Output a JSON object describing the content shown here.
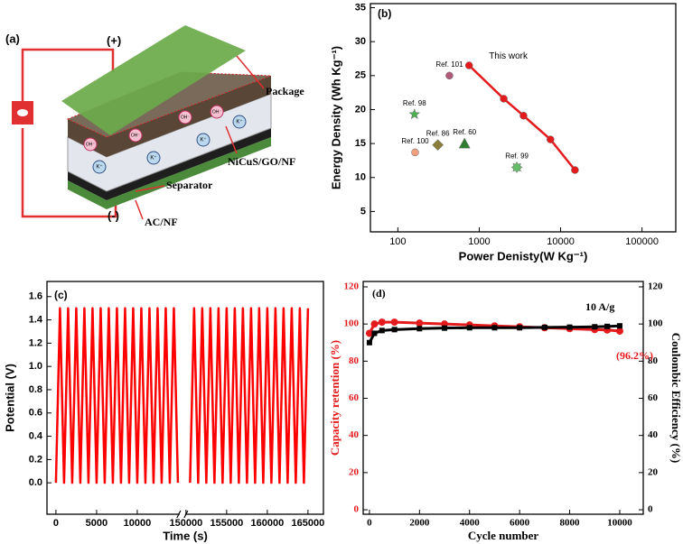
{
  "diagram": {
    "panel_label": "(a)",
    "terminals": [
      "(+)",
      "(-)"
    ],
    "labels": [
      "Package",
      "NiCuS/GO/NF",
      "Separator",
      "AC/NF"
    ],
    "ion_labels": [
      "OH⁻",
      "K⁺"
    ]
  },
  "chart_data": [
    {
      "type": "scatter",
      "panel_label": "(b)",
      "xlabel": "Power Denisty(W Kg⁻¹)",
      "ylabel": "Energy Density (Wh Kg⁻¹)",
      "xscale": "log",
      "xlim": [
        46,
        260000
      ],
      "xticks": [
        100,
        1000,
        10000,
        100000
      ],
      "ylim": [
        2,
        35.6
      ],
      "yticks": [
        5,
        10,
        15,
        20,
        25,
        30,
        35
      ],
      "series": [
        {
          "name": "This work",
          "color": "#e41a1c",
          "marker": "circle",
          "line": true,
          "x": [
            750,
            2000,
            3500,
            7500,
            15000
          ],
          "values": [
            26.5,
            21.6,
            19.1,
            15.6,
            11.1
          ]
        },
        {
          "name": "Ref. 101",
          "color": "#b05a7a",
          "marker": "circle",
          "x": [
            430
          ],
          "values": [
            25
          ]
        },
        {
          "name": "Ref. 98",
          "color": "#4caf50",
          "marker": "star",
          "x": [
            160
          ],
          "values": [
            19.3
          ]
        },
        {
          "name": "Ref. 86",
          "color": "#8b7d3a",
          "marker": "diamond",
          "x": [
            310
          ],
          "values": [
            14.8
          ]
        },
        {
          "name": "Ref. 60",
          "color": "#2e7d32",
          "marker": "triangle",
          "x": [
            660
          ],
          "values": [
            15
          ]
        },
        {
          "name": "Ref. 100",
          "color": "#f0a080",
          "marker": "circle",
          "x": [
            163
          ],
          "values": [
            13.7
          ]
        },
        {
          "name": "Ref. 99",
          "color": "#66bb6a",
          "marker": "burst",
          "x": [
            2900
          ],
          "values": [
            11.5
          ]
        }
      ]
    },
    {
      "type": "line",
      "panel_label": "(c)",
      "xlabel": "Time (s)",
      "ylabel": "Potential (V)",
      "xlim_segments": [
        [
          -1100,
          15100
        ],
        [
          150000,
          166900
        ]
      ],
      "xtick_segments": [
        [
          0,
          5000,
          10000
        ],
        [
          150000,
          155000,
          160000,
          165000
        ]
      ],
      "ylim": [
        -0.27,
        1.73
      ],
      "yticks": [
        {
          "value": 0,
          "label": "0.0"
        },
        0.2,
        0.4,
        0.6,
        0.8,
        {
          "value": 1,
          "label": "1.0"
        },
        1.2,
        1.4,
        1.6
      ],
      "series": [
        {
          "color": "#ff0000",
          "x": [
            0,
            500,
            1000,
            1500,
            2000,
            2500,
            3000,
            3500,
            4000,
            4500,
            5000,
            5500,
            6000,
            6500,
            7000,
            7500,
            8000,
            8500,
            9000,
            9500,
            10000,
            10500,
            11000,
            11500,
            12000,
            12500,
            13000,
            13500,
            14000,
            14500,
            15000,
            null,
            150500,
            151000,
            151500,
            152000,
            152500,
            153000,
            153500,
            154000,
            154500,
            155000,
            155500,
            156000,
            156500,
            157000,
            157500,
            158000,
            158500,
            159000,
            159500,
            160000,
            160500,
            161000,
            161500,
            162000,
            162500,
            163000,
            163500,
            164000,
            164500,
            165000
          ],
          "values": [
            0,
            1.5,
            0,
            1.5,
            0,
            1.5,
            0,
            1.5,
            0,
            1.5,
            0,
            1.5,
            0,
            1.5,
            0,
            1.5,
            0,
            1.5,
            0,
            1.5,
            0,
            1.5,
            0,
            1.5,
            0,
            1.5,
            0,
            1.5,
            0,
            1.5,
            0,
            null,
            0,
            1.5,
            0,
            1.5,
            0,
            1.5,
            0,
            1.5,
            0,
            1.5,
            0,
            1.5,
            0,
            1.5,
            0,
            1.5,
            0,
            1.5,
            0,
            1.5,
            0,
            1.5,
            0,
            1.5,
            0,
            1.5,
            0,
            1.5,
            0,
            1.5
          ]
        }
      ]
    },
    {
      "type": "line",
      "panel_label": "(d)",
      "xlabel": "Cycle number",
      "ylabel": "Capacity retention (%)",
      "ylabel_color": "#e41a1c",
      "y2label": "Coulombic Efficiency (%)",
      "xlim": [
        -250,
        10940
      ],
      "xticks": [
        0,
        2000,
        4000,
        6000,
        8000,
        10000
      ],
      "ylim": [
        -2.4,
        122.9
      ],
      "yticks": [
        0,
        20,
        40,
        60,
        80,
        100,
        120
      ],
      "y2lim": [
        -2.4,
        122.9
      ],
      "y2ticks": [
        0,
        20,
        40,
        60,
        80,
        100,
        120
      ],
      "annotations": [
        "10 A/g",
        "(96.2%)"
      ],
      "series": [
        {
          "color": "#e41a1c",
          "marker": "circle",
          "x": [
            0,
            200,
            500,
            1000,
            2000,
            3000,
            4000,
            5000,
            6000,
            7000,
            8000,
            9000,
            9500,
            10000
          ],
          "values": [
            95,
            100,
            101,
            101,
            100.5,
            100,
            99.5,
            99,
            98.5,
            98,
            97.5,
            97,
            96.8,
            96.2
          ]
        },
        {
          "color": "#000000",
          "marker": "square",
          "axis": "y2",
          "x": [
            0,
            200,
            500,
            1000,
            2000,
            3000,
            4000,
            5000,
            6000,
            7000,
            8000,
            9000,
            9500,
            10000
          ],
          "values": [
            90,
            95,
            96.5,
            97,
            97.5,
            97.8,
            98,
            98,
            98,
            98.2,
            98.3,
            98.5,
            98.7,
            99
          ]
        }
      ]
    }
  ]
}
